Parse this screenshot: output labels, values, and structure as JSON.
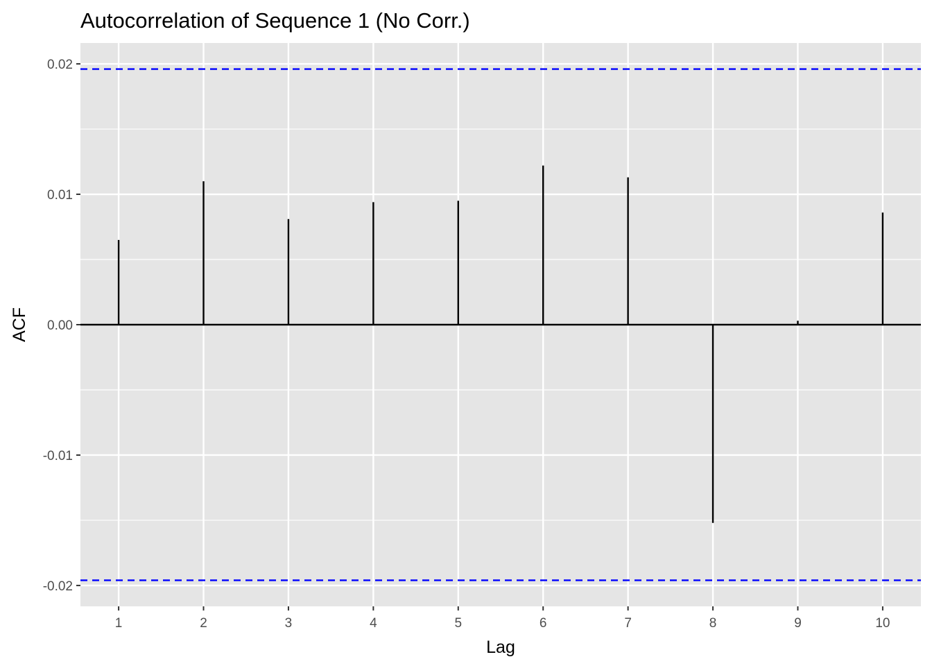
{
  "chart_data": {
    "type": "bar",
    "title": "Autocorrelation of Sequence 1 (No Corr.)",
    "xlabel": "Lag",
    "ylabel": "ACF",
    "x": [
      1,
      2,
      3,
      4,
      5,
      6,
      7,
      8,
      9,
      10
    ],
    "values": [
      0.0065,
      0.011,
      0.0081,
      0.0094,
      0.0095,
      0.0122,
      0.0113,
      -0.0152,
      0.0003,
      0.0086
    ],
    "xlim": [
      0.55,
      10.45
    ],
    "ylim": [
      -0.0216,
      0.0216
    ],
    "x_ticks": [
      "1",
      "2",
      "3",
      "4",
      "5",
      "6",
      "7",
      "8",
      "9",
      "10"
    ],
    "y_ticks": [
      "-0.02",
      "-0.01",
      "0.00",
      "0.01",
      "0.02"
    ],
    "confidence_bounds": [
      0.0196,
      -0.0196
    ],
    "colors": {
      "panel_background": "#e5e5e5",
      "grid": "#ffffff",
      "bars": "#000000",
      "confidence_lines": "#0000ff"
    },
    "grid": true,
    "legend": "none"
  }
}
